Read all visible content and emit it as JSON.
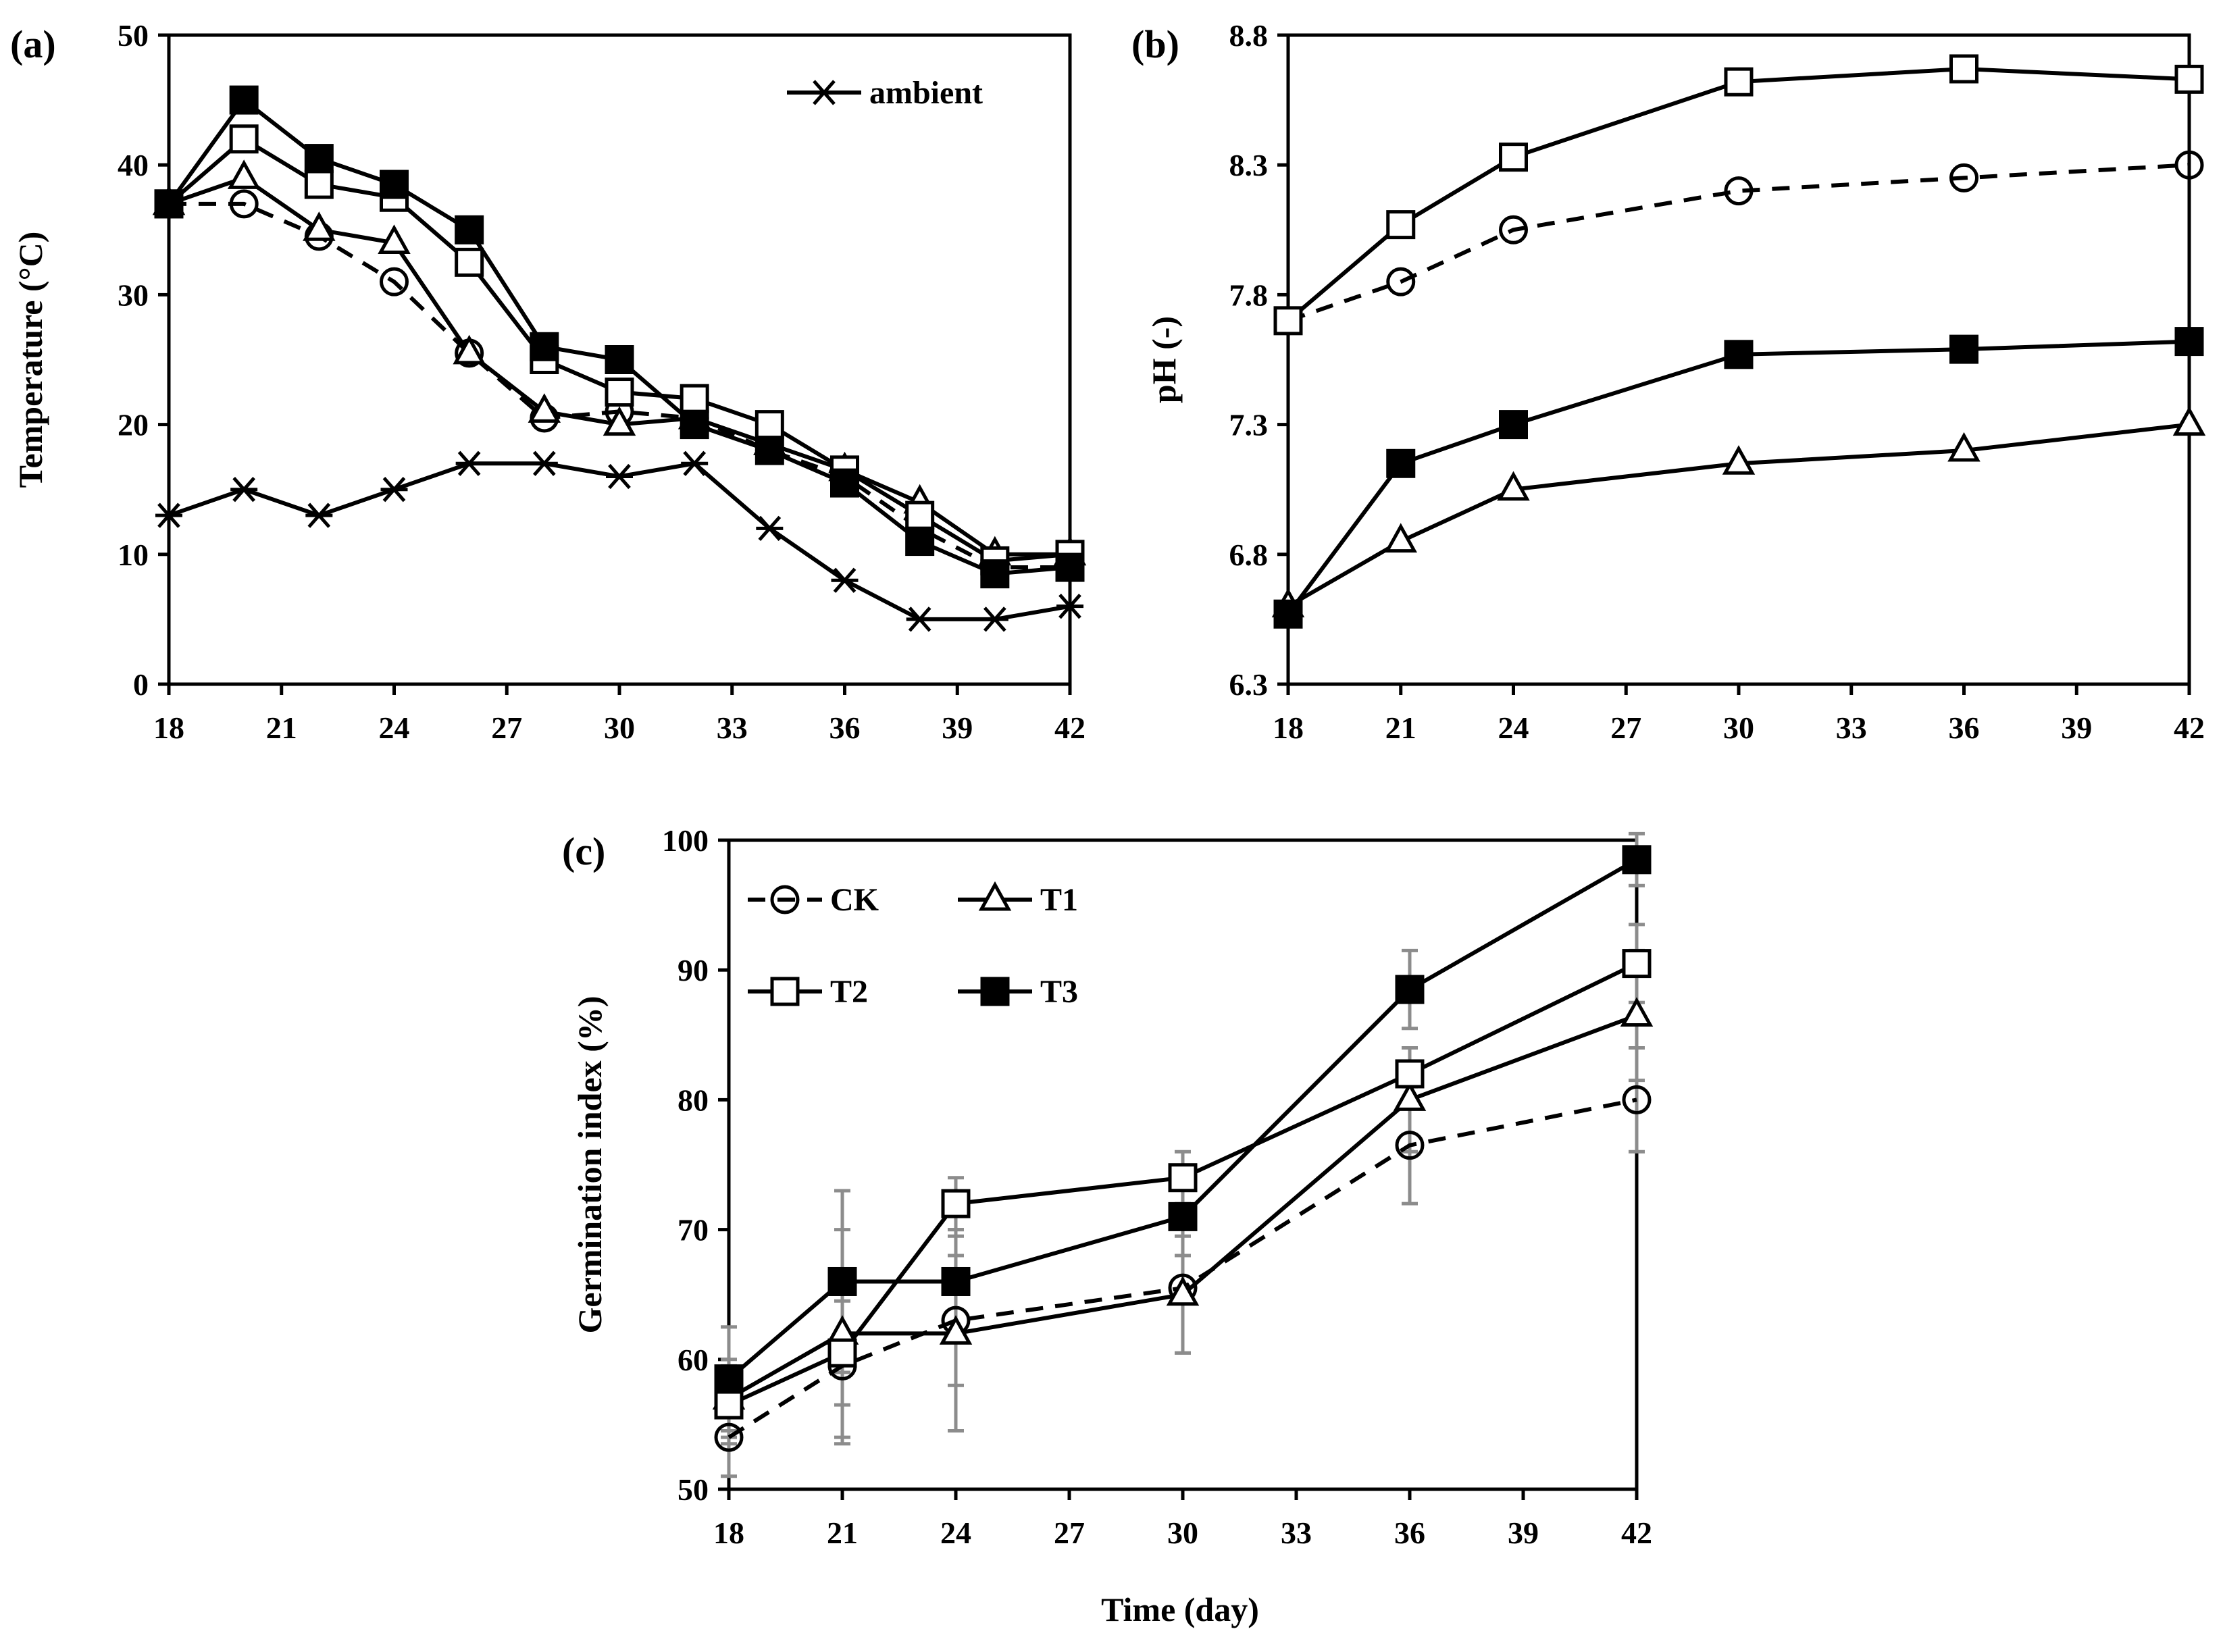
{
  "figure": {
    "time_axis_title": "Time (day)"
  },
  "chart_data": [
    {
      "type": "line",
      "panel": "(a)",
      "ylabel": "Temperature (°C)",
      "xlabel": "",
      "xlim": [
        18,
        42
      ],
      "ylim": [
        0,
        50
      ],
      "xticks": [
        "18",
        "21",
        "24",
        "27",
        "30",
        "33",
        "36",
        "39",
        "42"
      ],
      "yticks": [
        "0",
        "10",
        "20",
        "30",
        "40",
        "50"
      ],
      "legend": [
        "ambient"
      ],
      "legend_position": "top-right",
      "series": [
        {
          "name": "CK",
          "marker": "circle",
          "dash": true,
          "x": [
            18,
            20,
            22,
            24,
            26,
            28,
            30,
            32,
            34,
            36,
            38,
            40,
            42
          ],
          "y": [
            37,
            37,
            34.5,
            31,
            25.5,
            20.5,
            21,
            20.5,
            18,
            16,
            12,
            9,
            9
          ]
        },
        {
          "name": "T1",
          "marker": "triangle",
          "dash": false,
          "x": [
            18,
            20,
            22,
            24,
            26,
            28,
            30,
            32,
            34,
            36,
            38,
            40,
            42
          ],
          "y": [
            37,
            39,
            35,
            34,
            25.5,
            21,
            20,
            20.5,
            18.5,
            16.5,
            14,
            10,
            10
          ]
        },
        {
          "name": "T2",
          "marker": "square-open",
          "dash": false,
          "x": [
            18,
            20,
            22,
            24,
            26,
            28,
            30,
            32,
            34,
            36,
            38,
            40,
            42
          ],
          "y": [
            37,
            42,
            38.5,
            37.5,
            32.5,
            25,
            22.5,
            22,
            20,
            16.5,
            13,
            9.5,
            10
          ]
        },
        {
          "name": "T3",
          "marker": "square-filled",
          "dash": false,
          "x": [
            18,
            20,
            22,
            24,
            26,
            28,
            30,
            32,
            34,
            36,
            38,
            40,
            42
          ],
          "y": [
            37,
            45,
            40.5,
            38.5,
            35,
            26,
            25,
            20,
            18,
            15.5,
            11,
            8.5,
            9
          ]
        },
        {
          "name": "ambient",
          "marker": "asterisk",
          "dash": false,
          "x": [
            18,
            20,
            22,
            24,
            26,
            28,
            30,
            32,
            34,
            36,
            38,
            40,
            42
          ],
          "y": [
            13,
            15,
            13,
            15,
            17,
            17,
            16,
            17,
            12,
            8,
            5,
            5,
            6
          ]
        }
      ]
    },
    {
      "type": "line",
      "panel": "(b)",
      "ylabel": "pH (-)",
      "xlabel": "",
      "xlim": [
        18,
        42
      ],
      "ylim": [
        6.3,
        8.8
      ],
      "xticks": [
        "18",
        "21",
        "24",
        "27",
        "30",
        "33",
        "36",
        "39",
        "42"
      ],
      "yticks": [
        "6.3",
        "6.8",
        "7.3",
        "7.8",
        "8.3",
        "8.8"
      ],
      "series": [
        {
          "name": "CK",
          "marker": "circle",
          "dash": true,
          "x": [
            18,
            21,
            24,
            30,
            36,
            42
          ],
          "y": [
            7.7,
            7.85,
            8.05,
            8.2,
            8.25,
            8.3
          ]
        },
        {
          "name": "T1",
          "marker": "triangle",
          "dash": false,
          "x": [
            18,
            21,
            24,
            30,
            36,
            42
          ],
          "y": [
            6.6,
            6.85,
            7.05,
            7.15,
            7.2,
            7.3
          ]
        },
        {
          "name": "T2",
          "marker": "square-open",
          "dash": false,
          "x": [
            18,
            21,
            24,
            30,
            36,
            42
          ],
          "y": [
            7.7,
            8.07,
            8.33,
            8.62,
            8.67,
            8.63
          ]
        },
        {
          "name": "T3",
          "marker": "square-filled",
          "dash": false,
          "x": [
            18,
            21,
            24,
            30,
            36,
            42
          ],
          "y": [
            6.57,
            7.15,
            7.3,
            7.57,
            7.59,
            7.62
          ]
        }
      ]
    },
    {
      "type": "line",
      "panel": "(c)",
      "ylabel": "Germination index (%)",
      "xlabel": "Time (day)",
      "xlim": [
        18,
        42
      ],
      "ylim": [
        50,
        100
      ],
      "xticks": [
        "18",
        "21",
        "24",
        "27",
        "30",
        "33",
        "36",
        "39",
        "42"
      ],
      "yticks": [
        "50",
        "60",
        "70",
        "80",
        "90",
        "100"
      ],
      "legend": [
        "CK",
        "T1",
        "T2",
        "T3"
      ],
      "legend_position": "top-left",
      "series": [
        {
          "name": "CK",
          "marker": "circle",
          "dash": true,
          "x": [
            18,
            21,
            24,
            30,
            36,
            42
          ],
          "y": [
            54,
            59.5,
            63,
            65.5,
            76.5,
            80
          ],
          "err": [
            3,
            6,
            5,
            5,
            4.5,
            4
          ]
        },
        {
          "name": "T1",
          "marker": "triangle",
          "dash": false,
          "x": [
            18,
            21,
            24,
            30,
            36,
            42
          ],
          "y": [
            57,
            62,
            62,
            65,
            80,
            86.5
          ],
          "err": [
            3,
            8,
            7.5,
            4.5,
            4,
            5
          ]
        },
        {
          "name": "T2",
          "marker": "square-open",
          "dash": false,
          "x": [
            18,
            21,
            24,
            30,
            36,
            42
          ],
          "y": [
            56.5,
            60.5,
            72,
            74,
            82,
            90.5
          ],
          "err": [
            3,
            4,
            2,
            2,
            2,
            3
          ]
        },
        {
          "name": "T3",
          "marker": "square-filled",
          "dash": false,
          "x": [
            18,
            21,
            24,
            30,
            36,
            42
          ],
          "y": [
            58.5,
            66,
            66,
            71,
            88.5,
            98.5
          ],
          "err": [
            4,
            7,
            4,
            3,
            3,
            2
          ]
        }
      ]
    }
  ]
}
